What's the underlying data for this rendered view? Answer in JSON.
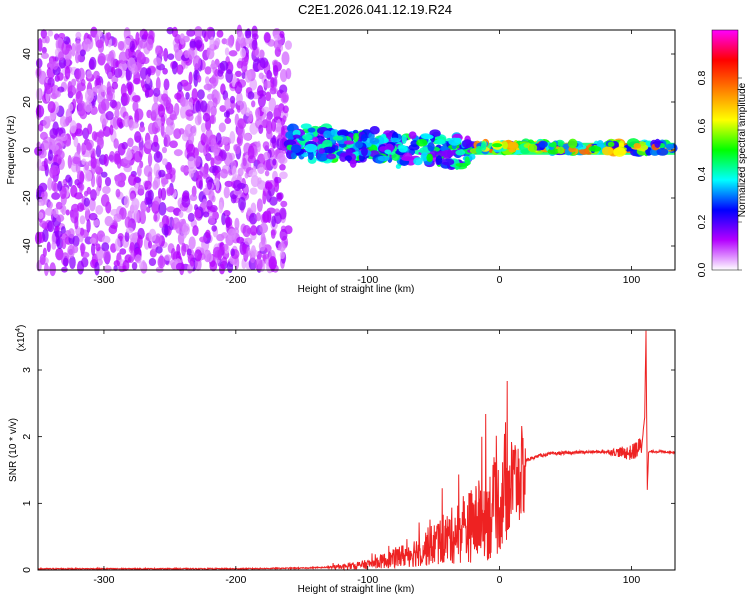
{
  "title": "C2E1.2026.041.12.19.R24",
  "chart_data": [
    {
      "type": "heatmap",
      "xlabel": "Height of straight line (km)",
      "ylabel": "Frequency (Hz)",
      "xlim": [
        -350,
        133
      ],
      "ylim": [
        -50,
        50
      ],
      "xticks": [
        -300,
        -200,
        -100,
        0,
        100
      ],
      "yticks": [
        -40,
        -20,
        0,
        20,
        40
      ],
      "colorbar": {
        "label": "Normalized spectral amplitude",
        "range": [
          0,
          1
        ],
        "ticks": [
          "0.0",
          "0.2",
          "0.4",
          "0.6",
          "0.8"
        ]
      },
      "colormap": [
        "#ffffff",
        "#b400ff",
        "#0000ff",
        "#00ffff",
        "#00ff00",
        "#ffff00",
        "#ff8000",
        "#ff0000",
        "#ff00ff"
      ],
      "regions": [
        {
          "name": "noise",
          "x": [
            -350,
            -160
          ],
          "y": [
            -50,
            50
          ],
          "amplitude": 0.1
        },
        {
          "name": "signal-turbulent",
          "x": [
            -160,
            -20
          ],
          "y": [
            -10,
            12
          ],
          "amplitude": 0.35
        },
        {
          "name": "signal-stable",
          "x": [
            -20,
            133
          ],
          "y": [
            -2,
            3
          ],
          "amplitude": 0.55
        }
      ]
    },
    {
      "type": "line",
      "xlabel": "Height of straight line (km)",
      "ylabel": "SNR (10 * v/v)",
      "yscale_label": "(x10",
      "yscale_exp": "4",
      "xlim": [
        -350,
        133
      ],
      "ylim": [
        0,
        3.6
      ],
      "xticks": [
        -300,
        -200,
        -100,
        0,
        100
      ],
      "yticks": [
        0,
        1,
        2,
        3
      ],
      "color": "#ee2222",
      "series": [
        {
          "x": [
            -350,
            -250,
            -200,
            -150,
            -120,
            -100,
            -80,
            -60,
            -40,
            -20,
            0,
            10,
            20,
            30,
            40,
            50,
            60,
            80,
            100,
            108,
            110,
            111,
            112,
            113,
            115,
            120,
            133
          ],
          "values": [
            0.02,
            0.02,
            0.02,
            0.03,
            0.05,
            0.1,
            0.2,
            0.35,
            0.55,
            0.8,
            1.1,
            1.45,
            1.65,
            1.72,
            1.75,
            1.76,
            1.77,
            1.78,
            1.78,
            1.9,
            2.3,
            3.6,
            1.2,
            1.77,
            1.78,
            1.78,
            1.77
          ]
        }
      ]
    }
  ]
}
